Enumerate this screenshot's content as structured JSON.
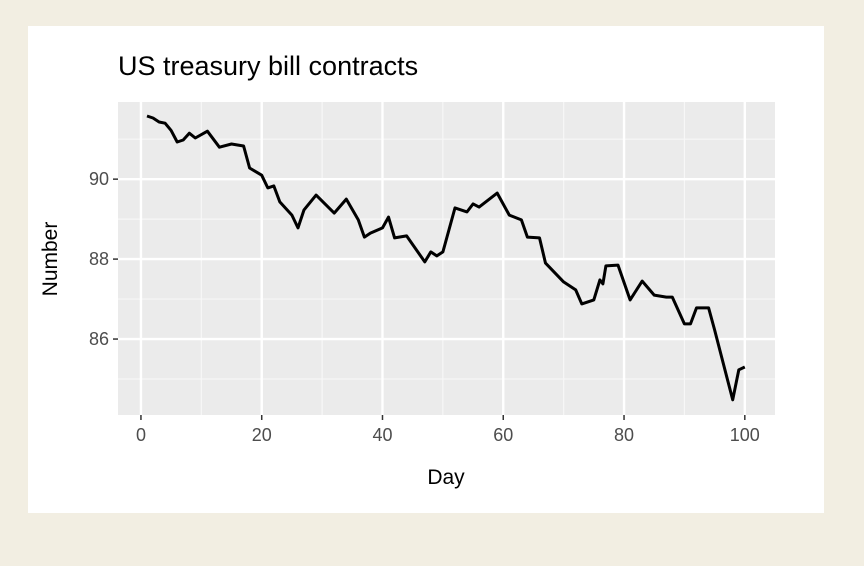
{
  "chart_data": {
    "type": "line",
    "title": "US treasury bill contracts",
    "xlabel": "Day",
    "ylabel": "Number",
    "xlim": [
      -3.8,
      105
    ],
    "ylim": [
      84.1,
      91.93
    ],
    "xticks": [
      0,
      20,
      40,
      60,
      80,
      100
    ],
    "xtick_labels": [
      "0",
      "20",
      "40",
      "60",
      "80",
      "100"
    ],
    "yticks": [
      86,
      88,
      90
    ],
    "ytick_labels": [
      "86",
      "88",
      "90"
    ],
    "grid": true,
    "background": "#ebebeb",
    "line_color": "#000000",
    "series": [
      {
        "x": [
          1,
          2,
          3,
          4,
          5,
          6,
          7,
          8,
          9,
          11,
          13,
          15,
          17,
          18,
          20,
          21,
          22,
          23,
          25,
          26,
          27,
          29,
          32,
          34,
          36,
          37,
          38,
          40,
          41,
          42,
          44,
          47,
          48,
          49,
          50,
          52,
          54,
          55,
          56,
          59,
          61,
          63,
          64,
          66,
          67,
          70,
          72,
          73,
          75,
          76,
          76.5,
          77,
          79,
          81,
          83,
          85,
          87,
          88,
          90,
          91,
          92,
          94,
          95,
          98,
          99,
          100
        ],
        "y": [
          91.58,
          91.53,
          91.43,
          91.4,
          91.22,
          90.93,
          90.98,
          91.15,
          91.03,
          91.2,
          90.8,
          90.88,
          90.83,
          90.28,
          90.1,
          89.78,
          89.83,
          89.43,
          89.1,
          88.78,
          89.23,
          89.6,
          89.15,
          89.5,
          88.98,
          88.55,
          88.65,
          88.78,
          89.05,
          88.53,
          88.58,
          87.93,
          88.18,
          88.08,
          88.18,
          89.28,
          89.18,
          89.38,
          89.3,
          89.65,
          89.1,
          88.98,
          88.55,
          88.53,
          87.9,
          87.43,
          87.23,
          86.88,
          86.98,
          87.48,
          87.38,
          87.83,
          87.85,
          86.98,
          87.45,
          87.1,
          87.05,
          87.05,
          86.38,
          86.38,
          86.78,
          86.78,
          86.23,
          84.48,
          85.23,
          85.3
        ]
      }
    ]
  }
}
